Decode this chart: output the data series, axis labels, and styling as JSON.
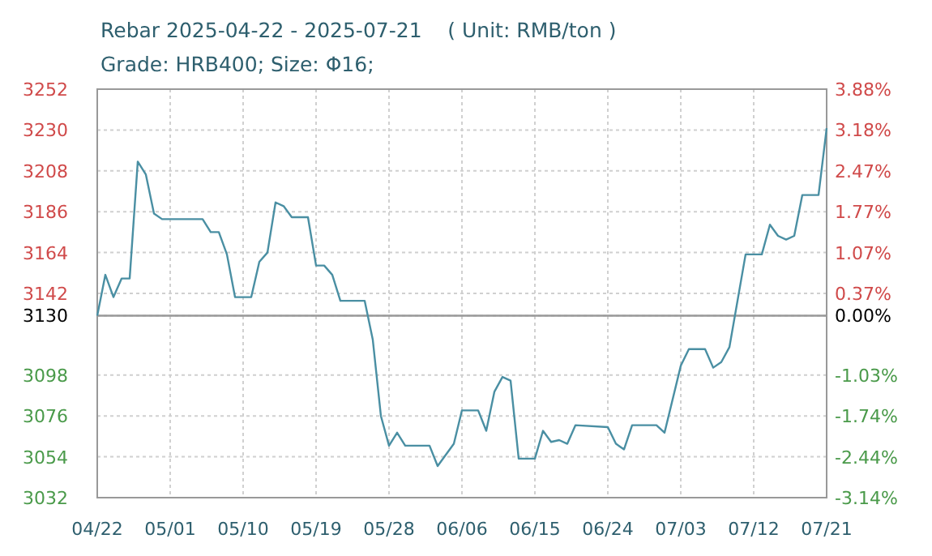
{
  "chart_data": {
    "type": "line",
    "title": "Rebar 2025-04-22 - 2025-07-21    ( Unit: RMB/ton )",
    "subtitle": "Grade: HRB400; Size: Φ16;",
    "x": [
      "2025-04-22",
      "2025-04-23",
      "2025-04-24",
      "2025-04-25",
      "2025-04-26",
      "2025-04-27",
      "2025-04-28",
      "2025-04-29",
      "2025-04-30",
      "2025-05-05",
      "2025-05-06",
      "2025-05-07",
      "2025-05-08",
      "2025-05-09",
      "2025-05-11",
      "2025-05-12",
      "2025-05-13",
      "2025-05-14",
      "2025-05-15",
      "2025-05-16",
      "2025-05-18",
      "2025-05-19",
      "2025-05-20",
      "2025-05-21",
      "2025-05-22",
      "2025-05-25",
      "2025-05-26",
      "2025-05-27",
      "2025-05-28",
      "2025-05-29",
      "2025-05-30",
      "2025-06-02",
      "2025-06-03",
      "2025-06-05",
      "2025-06-06",
      "2025-06-08",
      "2025-06-09",
      "2025-06-10",
      "2025-06-11",
      "2025-06-12",
      "2025-06-13",
      "2025-06-15",
      "2025-06-16",
      "2025-06-17",
      "2025-06-18",
      "2025-06-19",
      "2025-06-20",
      "2025-06-24",
      "2025-06-25",
      "2025-06-26",
      "2025-06-27",
      "2025-06-30",
      "2025-07-01",
      "2025-07-03",
      "2025-07-04",
      "2025-07-06",
      "2025-07-07",
      "2025-07-08",
      "2025-07-09",
      "2025-07-11",
      "2025-07-13",
      "2025-07-14",
      "2025-07-15",
      "2025-07-16",
      "2025-07-17",
      "2025-07-18",
      "2025-07-20",
      "2025-07-21"
    ],
    "series": [
      {
        "color": "#4a8fa3",
        "values": [
          3130,
          3152,
          3140,
          3150,
          3150,
          3213,
          3206,
          3185,
          3182,
          3182,
          3175,
          3175,
          3163,
          3140,
          3140,
          3159,
          3164,
          3191,
          3189,
          3183,
          3183,
          3157,
          3157,
          3152,
          3138,
          3138,
          3117,
          3076,
          3060,
          3067,
          3060,
          3060,
          3049,
          3061,
          3079,
          3079,
          3068,
          3089,
          3097,
          3095,
          3053,
          3053,
          3068,
          3062,
          3063,
          3061,
          3071,
          3070,
          3061,
          3058,
          3071,
          3071,
          3067,
          3103,
          3112,
          3112,
          3102,
          3105,
          3113,
          3163,
          3163,
          3179,
          3173,
          3171,
          3173,
          3195,
          3195,
          3231
        ]
      }
    ],
    "xlim": [
      "2025-04-22",
      "2025-07-21"
    ],
    "xticks": [
      {
        "value": "2025-04-22",
        "label": "04/22"
      },
      {
        "value": "2025-05-01",
        "label": "05/01"
      },
      {
        "value": "2025-05-10",
        "label": "05/10"
      },
      {
        "value": "2025-05-19",
        "label": "05/19"
      },
      {
        "value": "2025-05-28",
        "label": "05/28"
      },
      {
        "value": "2025-06-06",
        "label": "06/06"
      },
      {
        "value": "2025-06-15",
        "label": "06/15"
      },
      {
        "value": "2025-06-24",
        "label": "06/24"
      },
      {
        "value": "2025-07-03",
        "label": "07/03"
      },
      {
        "value": "2025-07-12",
        "label": "07/12"
      },
      {
        "value": "2025-07-21",
        "label": "07/21"
      }
    ],
    "ylim": [
      3032,
      3252
    ],
    "yticks": [
      3032,
      3054,
      3076,
      3098,
      3130,
      3142,
      3164,
      3186,
      3208,
      3230,
      3252
    ],
    "y2lim": [
      -3.14,
      3.88
    ],
    "y2ticks": [
      {
        "value": -3.14,
        "label": "-3.14%"
      },
      {
        "value": -2.44,
        "label": "-2.44%"
      },
      {
        "value": -1.74,
        "label": "-1.74%"
      },
      {
        "value": -1.03,
        "label": "-1.03%"
      },
      {
        "value": 0,
        "label": "0.00%"
      },
      {
        "value": 0.37,
        "label": "0.37%"
      },
      {
        "value": 1.07,
        "label": "1.07%"
      },
      {
        "value": 1.77,
        "label": "1.77%"
      },
      {
        "value": 2.47,
        "label": "2.47%"
      },
      {
        "value": 3.18,
        "label": "3.18%"
      },
      {
        "value": 3.88,
        "label": "3.88%"
      }
    ],
    "ref_lines": [
      {
        "axis": "y",
        "value": 3130,
        "color": "#999999"
      }
    ],
    "grid": true,
    "marker": "none",
    "line_style": "solid"
  }
}
